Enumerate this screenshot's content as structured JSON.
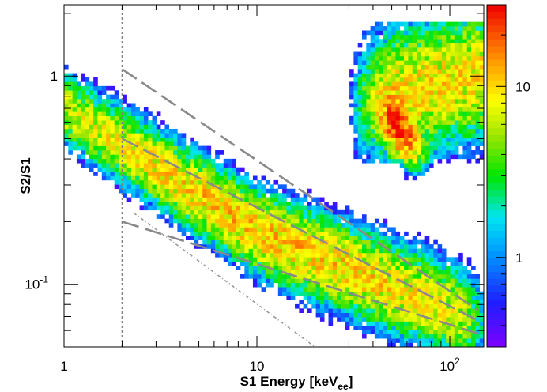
{
  "chart_data": {
    "type": "heatmap",
    "title": "",
    "xlabel": "S1 Energy [keV",
    "xlabel_subscript": "ee",
    "xlabel_suffix": "]",
    "ylabel": "S2/S1",
    "x_scale": "log",
    "y_scale": "log",
    "xlim": [
      1,
      150
    ],
    "ylim": [
      0.05,
      2.2
    ],
    "zlim": [
      0.3,
      30
    ],
    "z_scale": "log",
    "x_ticks": [
      {
        "value": 1,
        "label": "1"
      },
      {
        "value": 10,
        "label": "10"
      },
      {
        "value": 100,
        "label": "10",
        "exponent": "2"
      }
    ],
    "y_ticks": [
      {
        "value": 0.1,
        "label": "10",
        "exponent": "-1"
      },
      {
        "value": 1,
        "label": "1"
      }
    ],
    "z_ticks": [
      {
        "value": 1,
        "label": "1"
      },
      {
        "value": 10,
        "label": "10"
      }
    ],
    "grid": false,
    "density_regions": [
      {
        "name": "main band",
        "x_range": [
          1.2,
          110
        ],
        "y_at_x": [
          [
            1.2,
            0.63
          ],
          [
            10,
            0.18
          ],
          [
            100,
            0.075
          ]
        ],
        "peak_count": 12
      },
      {
        "name": "high-energy cluster",
        "x_center": 55,
        "y_center": 0.55,
        "peak_count": 25
      },
      {
        "name": "upper-right population",
        "x_range": [
          30,
          150
        ],
        "y_range": [
          0.45,
          1.8
        ],
        "peak_count": 10
      }
    ],
    "lines": [
      {
        "name": "band upper bound",
        "style": "long-dash",
        "color": "#8a8a8a",
        "points": [
          [
            2,
            1.08
          ],
          [
            140,
            0.075
          ]
        ]
      },
      {
        "name": "band centroid",
        "style": "long-dash",
        "color": "#8a8a8a",
        "points": [
          [
            2,
            0.5
          ],
          [
            140,
            0.067
          ]
        ]
      },
      {
        "name": "band lower bound",
        "style": "long-dash",
        "color": "#8a8a8a",
        "points": [
          [
            2,
            0.2
          ],
          [
            140,
            0.058
          ]
        ]
      },
      {
        "name": "energy threshold",
        "style": "dotted",
        "color": "#808080",
        "points": [
          [
            2,
            0.05
          ],
          [
            2,
            2.2
          ]
        ]
      },
      {
        "name": "lower acceptance",
        "style": "dash-dot",
        "color": "#9a9a9a",
        "points": [
          [
            2.3,
            0.22
          ],
          [
            20,
            0.05
          ]
        ]
      }
    ]
  }
}
